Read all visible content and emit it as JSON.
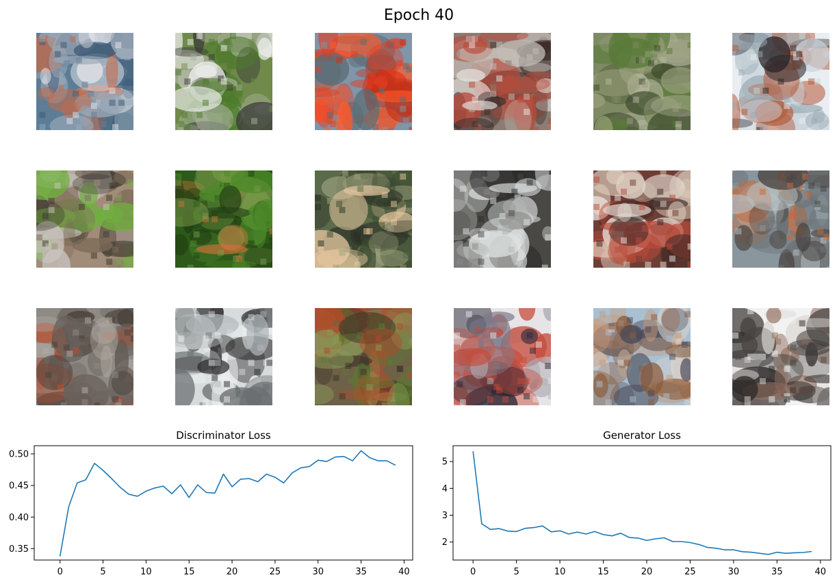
{
  "figure": {
    "title": "Epoch 40"
  },
  "samples": {
    "rows": 3,
    "cols": 6,
    "images": [
      {
        "id": "r1c1",
        "colors": [
          "#5d7d97",
          "#3d5873",
          "#9aa9b8",
          "#c46a4a",
          "#e8e6ea"
        ]
      },
      {
        "id": "r1c2",
        "colors": [
          "#6f8a4a",
          "#4c7a2a",
          "#a9b09c",
          "#f0f0f0",
          "#3a3a3a"
        ]
      },
      {
        "id": "r1c3",
        "colors": [
          "#7f95a8",
          "#e53b1f",
          "#ff5a2a",
          "#c23018",
          "#5a6b73"
        ]
      },
      {
        "id": "r1c4",
        "colors": [
          "#8a7d74",
          "#c2bcb6",
          "#3a2b28",
          "#b84a3a",
          "#e9e6e3"
        ]
      },
      {
        "id": "r1c5",
        "colors": [
          "#7d8a63",
          "#5a7a3a",
          "#9aa07c",
          "#3c4a2c",
          "#b6b6a0"
        ]
      },
      {
        "id": "r1c6",
        "colors": [
          "#e8eef2",
          "#c9d3da",
          "#2b2528",
          "#9aa9b3",
          "#b55a3a"
        ]
      },
      {
        "id": "r2c1",
        "colors": [
          "#a08c78",
          "#7c6a58",
          "#6fb03e",
          "#c9c4c0",
          "#3e3a30"
        ]
      },
      {
        "id": "r2c2",
        "colors": [
          "#2d5a1a",
          "#4e8a2a",
          "#1f3d12",
          "#d0703a",
          "#7a9a4a"
        ]
      },
      {
        "id": "r2c3",
        "colors": [
          "#5a6a4a",
          "#3b4a30",
          "#e8c9a0",
          "#9aa07c",
          "#2a2f26"
        ]
      },
      {
        "id": "r2c4",
        "colors": [
          "#4a4845",
          "#dfe3e3",
          "#8b8986",
          "#2b2b2a",
          "#b2b6b3"
        ]
      },
      {
        "id": "r2c5",
        "colors": [
          "#6d3e35",
          "#d8c8b8",
          "#3b2726",
          "#b94a3a",
          "#ece4dc"
        ]
      },
      {
        "id": "r2c6",
        "colors": [
          "#8a969d",
          "#b7c0c3",
          "#4a4542",
          "#c9683a",
          "#6b7478"
        ]
      },
      {
        "id": "r3c1",
        "colors": [
          "#8e8a84",
          "#6a625c",
          "#c04a2a",
          "#b3ada6",
          "#4a403a"
        ]
      },
      {
        "id": "r3c2",
        "colors": [
          "#d6dbdc",
          "#b2b9bc",
          "#2c2a2a",
          "#eef0f0",
          "#6a6e70"
        ]
      },
      {
        "id": "r3c3",
        "colors": [
          "#6e6148",
          "#8a9a58",
          "#3b3328",
          "#b24a2a",
          "#5a7a32"
        ]
      },
      {
        "id": "r3c4",
        "colors": [
          "#e6e4e6",
          "#b7b4ba",
          "#2a2838",
          "#7d7a8a",
          "#c64a3a"
        ]
      },
      {
        "id": "r3c5",
        "colors": [
          "#a9c0d2",
          "#c79a7a",
          "#4a4a58",
          "#d8d4d0",
          "#8a5a3a"
        ]
      },
      {
        "id": "r3c6",
        "colors": [
          "#f2f2f2",
          "#4a4542",
          "#d9d4d0",
          "#8d6a5a",
          "#2e2b2a"
        ]
      }
    ]
  },
  "chart_data": [
    {
      "type": "line",
      "title": "Discriminator Loss",
      "xlabel": "",
      "ylabel": "",
      "x": [
        0,
        1,
        2,
        3,
        4,
        5,
        6,
        7,
        8,
        9,
        10,
        11,
        12,
        13,
        14,
        15,
        16,
        17,
        18,
        19,
        20,
        21,
        22,
        23,
        24,
        25,
        26,
        27,
        28,
        29,
        30,
        31,
        32,
        33,
        34,
        35,
        36,
        37,
        38,
        39
      ],
      "values": [
        0.338,
        0.416,
        0.454,
        0.459,
        0.485,
        0.474,
        0.461,
        0.447,
        0.436,
        0.433,
        0.441,
        0.446,
        0.449,
        0.437,
        0.451,
        0.431,
        0.451,
        0.439,
        0.438,
        0.468,
        0.448,
        0.46,
        0.461,
        0.456,
        0.468,
        0.463,
        0.454,
        0.47,
        0.478,
        0.48,
        0.49,
        0.488,
        0.495,
        0.496,
        0.489,
        0.505,
        0.494,
        0.489,
        0.489,
        0.482
      ],
      "xlim": [
        -3,
        41
      ],
      "ylim": [
        0.332,
        0.513
      ],
      "xticks": [
        0,
        5,
        10,
        15,
        20,
        25,
        30,
        35,
        40
      ],
      "xtick_labels": [
        "0",
        "5",
        "10",
        "15",
        "20",
        "25",
        "30",
        "35",
        "40"
      ],
      "yticks": [
        0.35,
        0.4,
        0.45,
        0.5
      ],
      "ytick_labels": [
        "0.35",
        "0.40",
        "0.45",
        "0.50"
      ],
      "color": "#1f77b4",
      "grid": false
    },
    {
      "type": "line",
      "title": "Generator Loss",
      "xlabel": "",
      "ylabel": "",
      "x": [
        0,
        1,
        2,
        3,
        4,
        5,
        6,
        7,
        8,
        9,
        10,
        11,
        12,
        13,
        14,
        15,
        16,
        17,
        18,
        19,
        20,
        21,
        22,
        23,
        24,
        25,
        26,
        27,
        28,
        29,
        30,
        31,
        32,
        33,
        34,
        35,
        36,
        37,
        38,
        39
      ],
      "values": [
        5.38,
        2.68,
        2.47,
        2.5,
        2.41,
        2.39,
        2.51,
        2.54,
        2.6,
        2.38,
        2.42,
        2.3,
        2.37,
        2.3,
        2.39,
        2.28,
        2.23,
        2.33,
        2.17,
        2.15,
        2.06,
        2.12,
        2.16,
        2.02,
        2.02,
        1.98,
        1.91,
        1.8,
        1.77,
        1.71,
        1.71,
        1.64,
        1.62,
        1.58,
        1.54,
        1.62,
        1.58,
        1.6,
        1.61,
        1.65
      ],
      "xlim": [
        -2.3,
        41.2
      ],
      "ylim": [
        1.33,
        5.59
      ],
      "xticks": [
        0,
        5,
        10,
        15,
        20,
        25,
        30,
        35,
        40
      ],
      "xtick_labels": [
        "0",
        "5",
        "10",
        "15",
        "20",
        "25",
        "30",
        "35",
        "40"
      ],
      "yticks": [
        2,
        3,
        4,
        5
      ],
      "ytick_labels": [
        "2",
        "3",
        "4",
        "5"
      ],
      "color": "#1f77b4",
      "grid": false
    }
  ]
}
